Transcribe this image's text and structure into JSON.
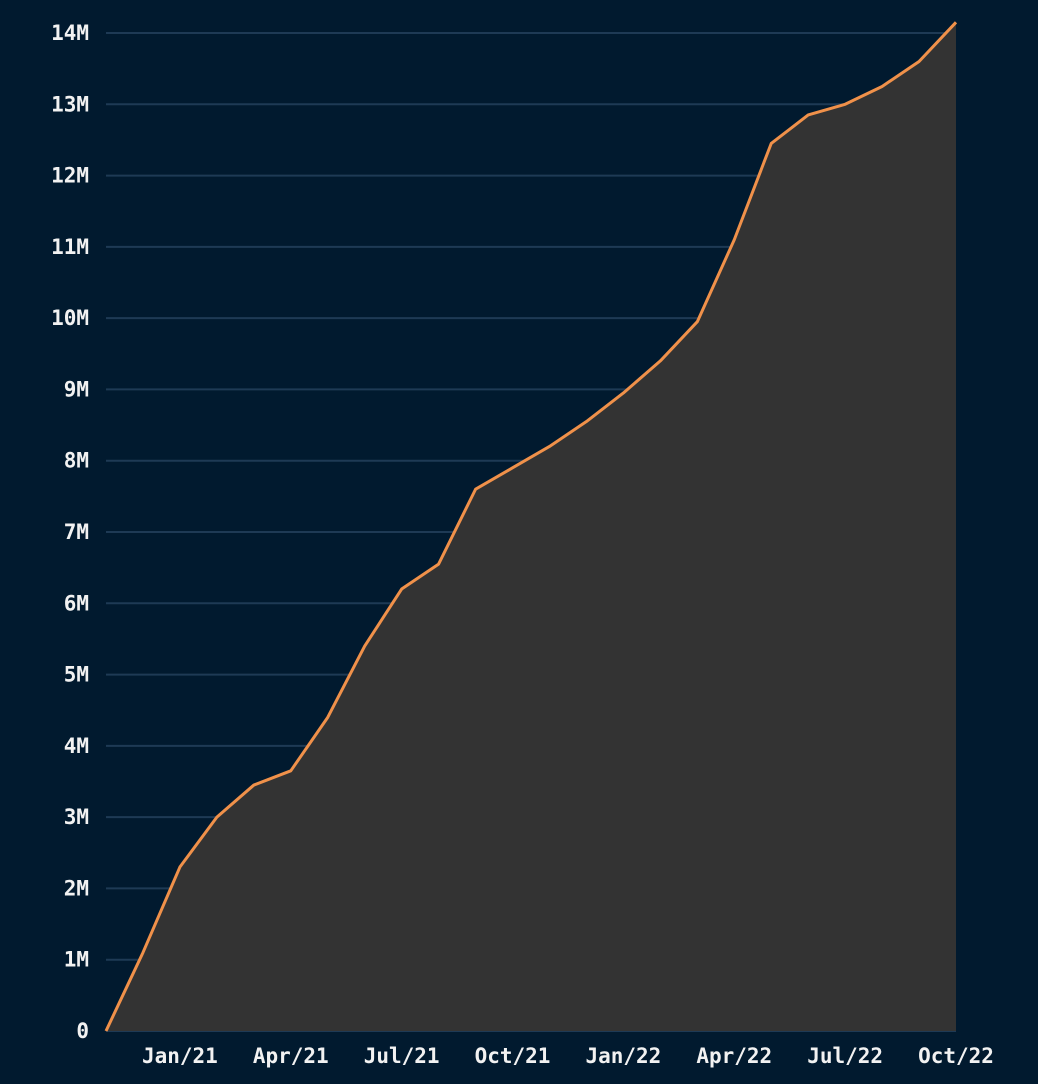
{
  "chart_data": {
    "type": "area",
    "x": [
      "2020-11",
      "2020-12",
      "2021-01",
      "2021-02",
      "2021-03",
      "2021-04",
      "2021-05",
      "2021-06",
      "2021-07",
      "2021-08",
      "2021-09",
      "2021-10",
      "2021-11",
      "2021-12",
      "2022-01",
      "2022-02",
      "2022-03",
      "2022-04",
      "2022-05",
      "2022-06",
      "2022-07",
      "2022-08",
      "2022-09",
      "2022-10"
    ],
    "series": [
      {
        "color": "#f0914a",
        "values": [
          0,
          1100000,
          2300000,
          3000000,
          3450000,
          3650000,
          4400000,
          5400000,
          6200000,
          6550000,
          7600000,
          7900000,
          8200000,
          8550000,
          8950000,
          9400000,
          9950000,
          11100000,
          12450000,
          12850000,
          13000000,
          13250000,
          13600000,
          14150000
        ]
      }
    ],
    "area_color": "#333333",
    "xlim": [
      "2020-11",
      "2022-10"
    ],
    "xticks": [
      {
        "value": "2021-01",
        "label": "Jan/21"
      },
      {
        "value": "2021-04",
        "label": "Apr/21"
      },
      {
        "value": "2021-07",
        "label": "Jul/21"
      },
      {
        "value": "2021-10",
        "label": "Oct/21"
      },
      {
        "value": "2022-01",
        "label": "Jan/22"
      },
      {
        "value": "2022-04",
        "label": "Apr/22"
      },
      {
        "value": "2022-07",
        "label": "Jul/22"
      },
      {
        "value": "2022-10",
        "label": "Oct/22"
      }
    ],
    "ylim": [
      0,
      14000000
    ],
    "yticks": [
      0,
      {
        "value": 1000000,
        "label": "1M"
      },
      {
        "value": 2000000,
        "label": "2M"
      },
      {
        "value": 3000000,
        "label": "3M"
      },
      {
        "value": 4000000,
        "label": "4M"
      },
      {
        "value": 5000000,
        "label": "5M"
      },
      {
        "value": 6000000,
        "label": "6M"
      },
      {
        "value": 7000000,
        "label": "7M"
      },
      {
        "value": 8000000,
        "label": "8M"
      },
      {
        "value": 9000000,
        "label": "9M"
      },
      {
        "value": 10000000,
        "label": "10M"
      },
      {
        "value": 11000000,
        "label": "11M"
      },
      {
        "value": 12000000,
        "label": "12M"
      },
      {
        "value": 13000000,
        "label": "13M"
      },
      {
        "value": 14000000,
        "label": "14M"
      }
    ],
    "grid": true
  }
}
